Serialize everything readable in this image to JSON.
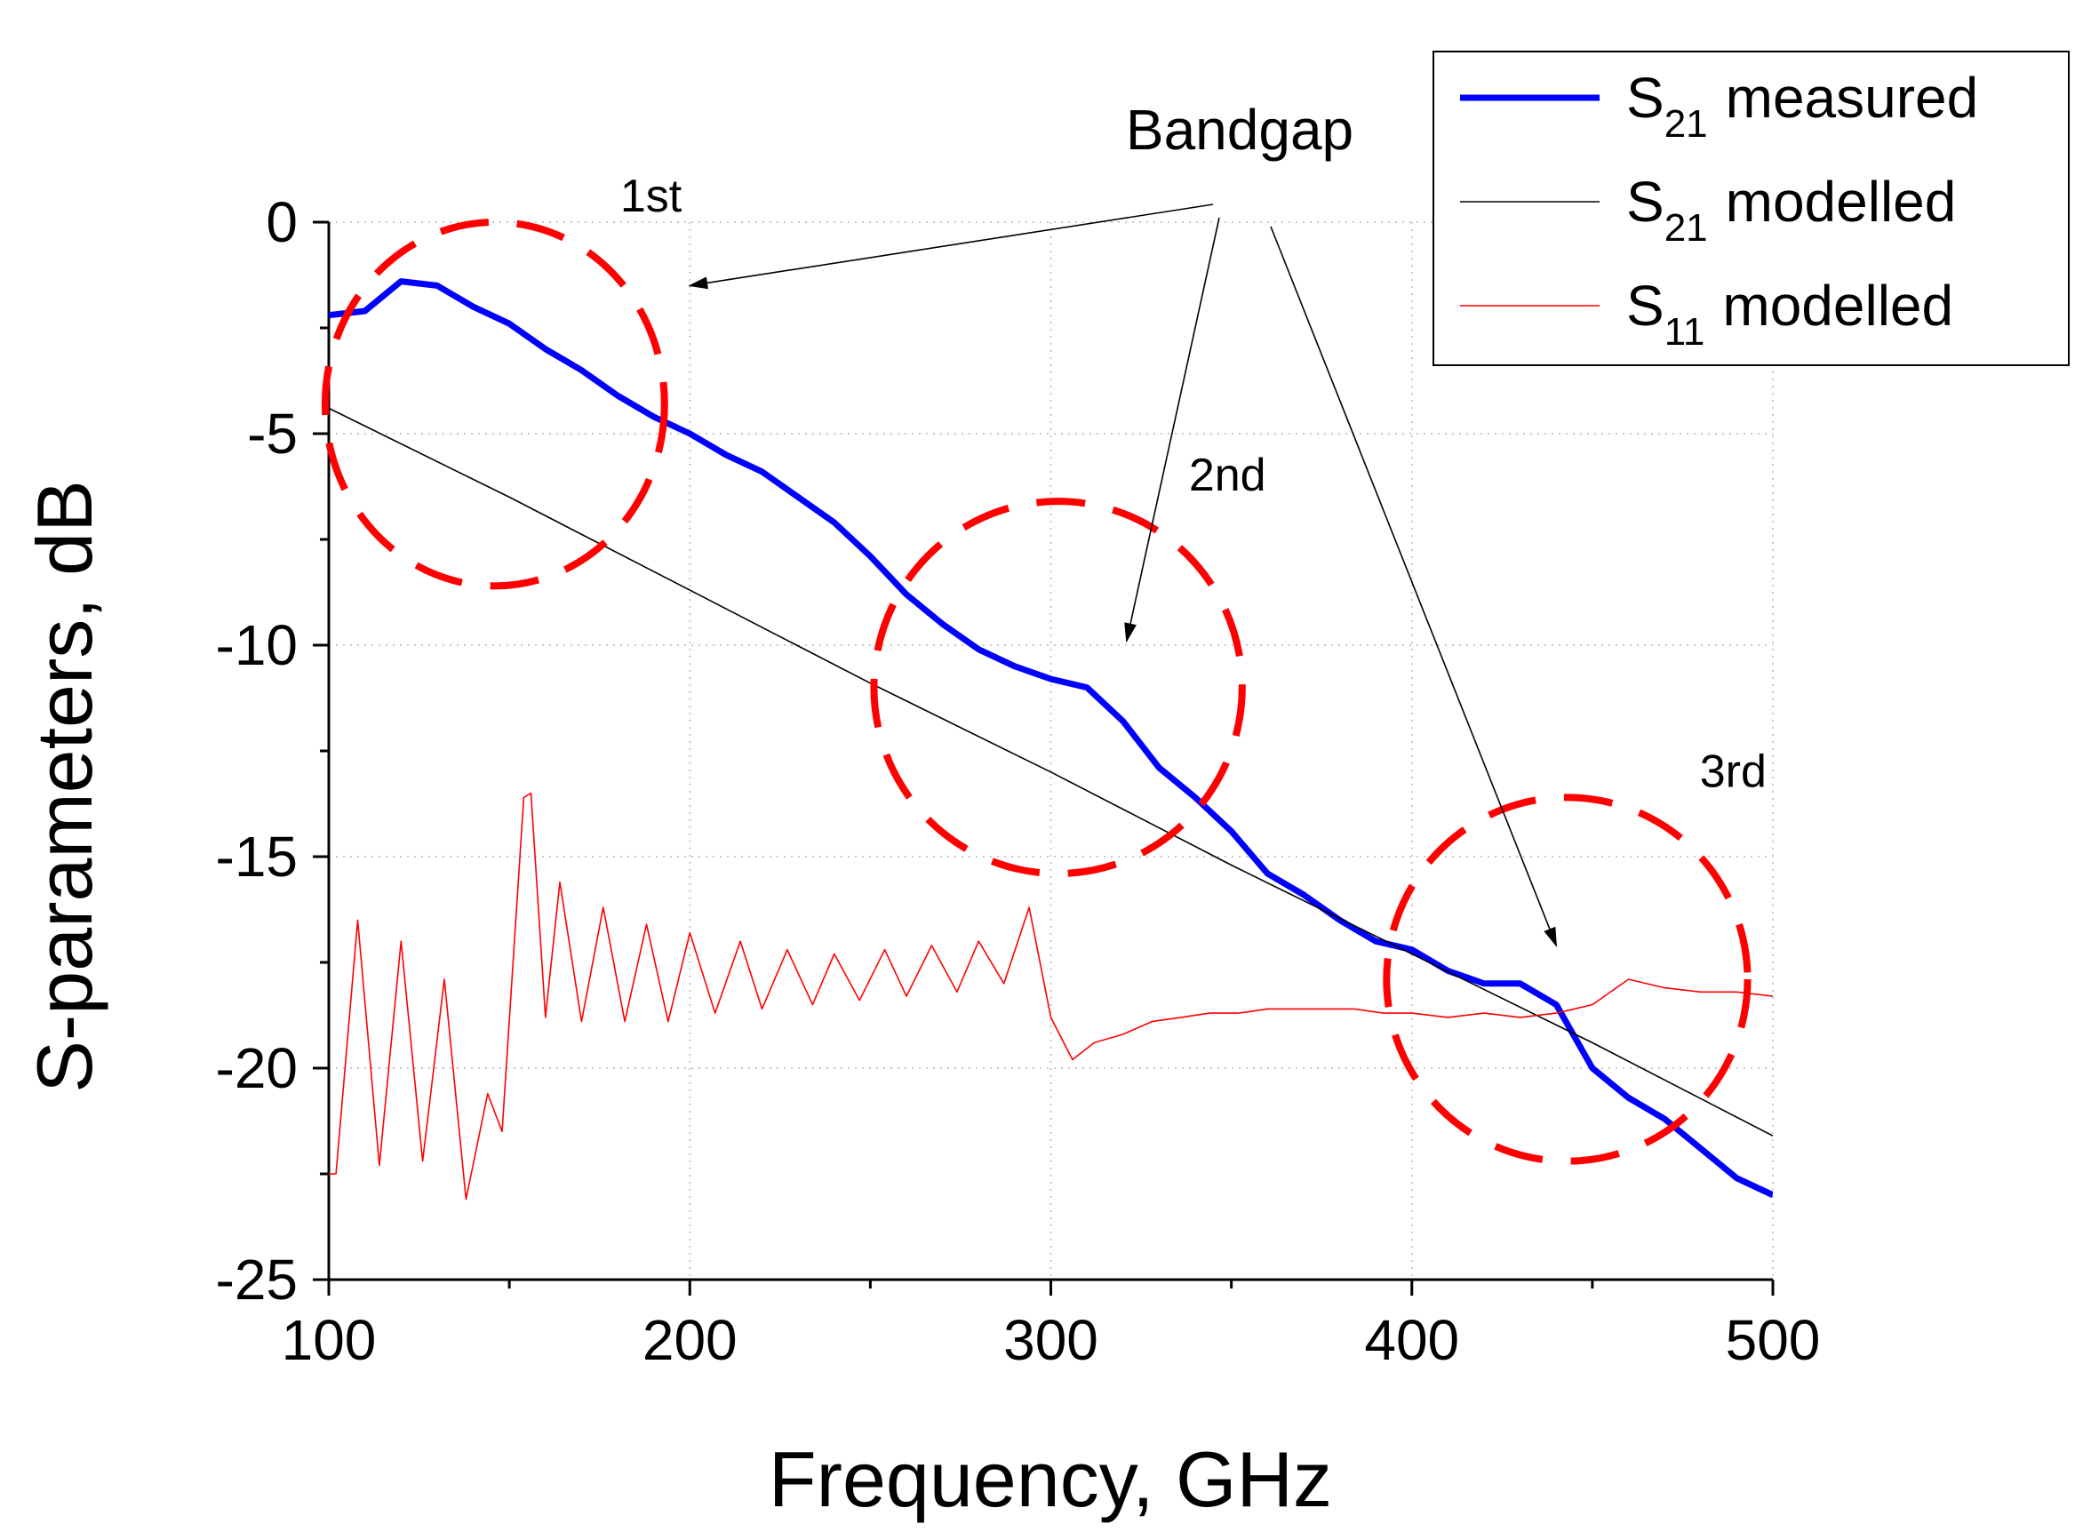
{
  "chart_data": {
    "type": "line",
    "title": "",
    "xlabel": "Frequency, GHz",
    "ylabel": "S-parameters, dB",
    "xlim": [
      100,
      500
    ],
    "ylim": [
      -25,
      0
    ],
    "xticks": [
      100,
      200,
      300,
      400,
      500
    ],
    "yticks": [
      0,
      -5,
      -10,
      -15,
      -20,
      -25
    ],
    "xtick_labels": [
      "100",
      "200",
      "300",
      "400",
      "500"
    ],
    "ytick_labels": [
      "0",
      "-5",
      "-10",
      "-15",
      "-20",
      "-25"
    ],
    "grid": "dotted",
    "legend_position": "top-right",
    "series": [
      {
        "name": "S21 measured",
        "label_main": "S",
        "label_sub": "21",
        "label_rest": "measured",
        "color": "#0000ff",
        "x": [
          100,
          110,
          120,
          130,
          140,
          150,
          160,
          170,
          180,
          190,
          200,
          210,
          220,
          230,
          240,
          250,
          260,
          270,
          280,
          290,
          300,
          310,
          320,
          330,
          340,
          350,
          360,
          370,
          380,
          390,
          400,
          410,
          420,
          430,
          440,
          450,
          460,
          470,
          480,
          490,
          500
        ],
        "y": [
          -2.2,
          -2.1,
          -1.4,
          -1.5,
          -2.0,
          -2.4,
          -3.0,
          -3.5,
          -4.1,
          -4.6,
          -5.0,
          -5.5,
          -5.9,
          -6.5,
          -7.1,
          -7.9,
          -8.8,
          -9.5,
          -10.1,
          -10.5,
          -10.8,
          -11.0,
          -11.8,
          -12.9,
          -13.6,
          -14.4,
          -15.4,
          -15.9,
          -16.5,
          -17.0,
          -17.2,
          -17.7,
          -18.0,
          -18.0,
          -18.5,
          -20.0,
          -20.7,
          -21.2,
          -21.9,
          -22.6,
          -23.0
        ]
      },
      {
        "name": "S21 modelled",
        "label_main": "S",
        "label_sub": "21",
        "label_rest": "modelled",
        "color": "#000000",
        "x": [
          100,
          150,
          200,
          250,
          300,
          350,
          400,
          450,
          500
        ],
        "y": [
          -4.4,
          -6.5,
          -8.7,
          -10.9,
          -13.0,
          -15.2,
          -17.3,
          -19.4,
          -21.6
        ]
      },
      {
        "name": "S11 modelled",
        "label_main": "S",
        "label_sub": "11",
        "label_rest": "modelled",
        "color": "#ff0000",
        "x": [
          100,
          102,
          108,
          114,
          120,
          126,
          132,
          138,
          144,
          148,
          154,
          156,
          160,
          164,
          170,
          176,
          182,
          188,
          194,
          200,
          207,
          214,
          220,
          227,
          234,
          240,
          247,
          254,
          260,
          267,
          274,
          280,
          287,
          294,
          300,
          306,
          312,
          320,
          328,
          336,
          344,
          352,
          360,
          368,
          376,
          384,
          392,
          400,
          410,
          420,
          430,
          440,
          450,
          460,
          470,
          480,
          490,
          500
        ],
        "y": [
          -22.5,
          -22.5,
          -16.5,
          -22.3,
          -17.0,
          -22.2,
          -17.9,
          -23.1,
          -20.6,
          -21.5,
          -13.6,
          -13.5,
          -18.8,
          -15.6,
          -18.9,
          -16.2,
          -18.9,
          -16.6,
          -18.9,
          -16.8,
          -18.7,
          -17.0,
          -18.6,
          -17.2,
          -18.5,
          -17.3,
          -18.4,
          -17.2,
          -18.3,
          -17.1,
          -18.2,
          -17.0,
          -18.0,
          -16.2,
          -18.8,
          -19.8,
          -19.4,
          -19.2,
          -18.9,
          -18.8,
          -18.7,
          -18.7,
          -18.6,
          -18.6,
          -18.6,
          -18.6,
          -18.7,
          -18.7,
          -18.8,
          -18.7,
          -18.8,
          -18.7,
          -18.5,
          -17.9,
          -18.1,
          -18.2,
          -18.2,
          -18.3
        ]
      }
    ],
    "annotations": {
      "bandgap_label": "Bandgap",
      "regions": [
        {
          "label": "1st",
          "center_x": 146,
          "center_y": -4.3,
          "radius_x": 47,
          "radius_y": 4.3
        },
        {
          "label": "2nd",
          "center_x": 302,
          "center_y": -11.0,
          "radius_x": 51,
          "radius_y": 4.4
        },
        {
          "label": "3rd",
          "center_x": 443,
          "center_y": -17.9,
          "radius_x": 50,
          "radius_y": 4.3
        }
      ],
      "arrow_targets": [
        {
          "x": 200,
          "y": -1.5
        },
        {
          "x": 321,
          "y": -9.9
        },
        {
          "x": 440,
          "y": -17.1
        }
      ]
    }
  }
}
